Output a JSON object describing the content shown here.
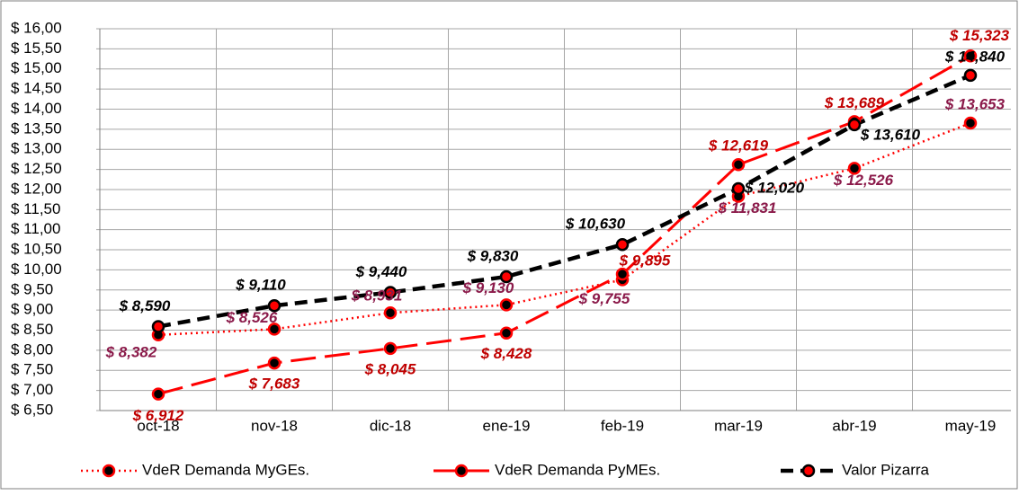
{
  "chart_data": {
    "type": "line",
    "categories": [
      "oct-18",
      "nov-18",
      "dic-18",
      "ene-19",
      "feb-19",
      "mar-19",
      "abr-19",
      "may-19"
    ],
    "ylim": [
      6.5,
      16
    ],
    "yticks": [
      {
        "value": 6.5,
        "label": "$ 6,50"
      },
      {
        "value": 7,
        "label": "$ 7,00"
      },
      {
        "value": 7.5,
        "label": "$ 7,50"
      },
      {
        "value": 8,
        "label": "$ 8,00"
      },
      {
        "value": 8.5,
        "label": "$ 8,50"
      },
      {
        "value": 9,
        "label": "$ 9,00"
      },
      {
        "value": 9.5,
        "label": "$ 9,50"
      },
      {
        "value": 10,
        "label": "$ 10,00"
      },
      {
        "value": 10.5,
        "label": "$ 10,50"
      },
      {
        "value": 11,
        "label": "$ 11,00"
      },
      {
        "value": 11.5,
        "label": "$ 11,50"
      },
      {
        "value": 12,
        "label": "$ 12,00"
      },
      {
        "value": 12.5,
        "label": "$ 12,50"
      },
      {
        "value": 13,
        "label": "$ 13,00"
      },
      {
        "value": 13.5,
        "label": "$ 13,50"
      },
      {
        "value": 14,
        "label": "$ 14,00"
      },
      {
        "value": 14.5,
        "label": "$ 14,50"
      },
      {
        "value": 15,
        "label": "$ 15,00"
      },
      {
        "value": 15.5,
        "label": "$ 15,50"
      },
      {
        "value": 16,
        "label": "$ 16,00"
      }
    ],
    "grid": true,
    "legend": "bottom",
    "series": [
      {
        "name": "VdeR Demanda MyGEs.",
        "color": "#ff0000",
        "dash": "dotted",
        "marker_fill": "#000000",
        "marker_stroke": "#ff0000",
        "label_color": "#8b1a4a",
        "values": [
          8.382,
          8.526,
          8.931,
          9.13,
          9.755,
          11.831,
          12.526,
          13.653
        ],
        "value_labels": [
          "$ 8,382",
          "$ 8,526",
          "$ 8,931",
          "$ 9,130",
          "$ 9,755",
          "$ 11,831",
          "$ 12,526",
          "$ 13,653"
        ]
      },
      {
        "name": "VdeR Demanda PyMEs.",
        "color": "#ff0000",
        "dash": "dashed",
        "marker_fill": "#000000",
        "marker_stroke": "#ff0000",
        "label_color": "#c00000",
        "values": [
          6.912,
          7.683,
          8.045,
          8.428,
          9.895,
          12.619,
          13.689,
          15.323
        ],
        "value_labels": [
          "$ 6,912",
          "$ 7,683",
          "$ 8,045",
          "$ 8,428",
          "$ 9,895",
          "$ 12,619",
          "$ 13,689",
          "$ 15,323"
        ]
      },
      {
        "name": "Valor Pizarra",
        "color": "#000000",
        "dash": "bold-dashed",
        "marker_fill": "#ff0000",
        "marker_stroke": "#000000",
        "label_color": "#000000",
        "values": [
          8.59,
          9.11,
          9.44,
          9.83,
          10.63,
          12.02,
          13.61,
          14.84
        ],
        "value_labels": [
          "$ 8,590",
          "$ 9,110",
          "$ 9,440",
          "$ 9,830",
          "$ 10,630",
          "$ 12,020",
          "$ 13,610",
          "$ 14,840"
        ]
      }
    ]
  }
}
